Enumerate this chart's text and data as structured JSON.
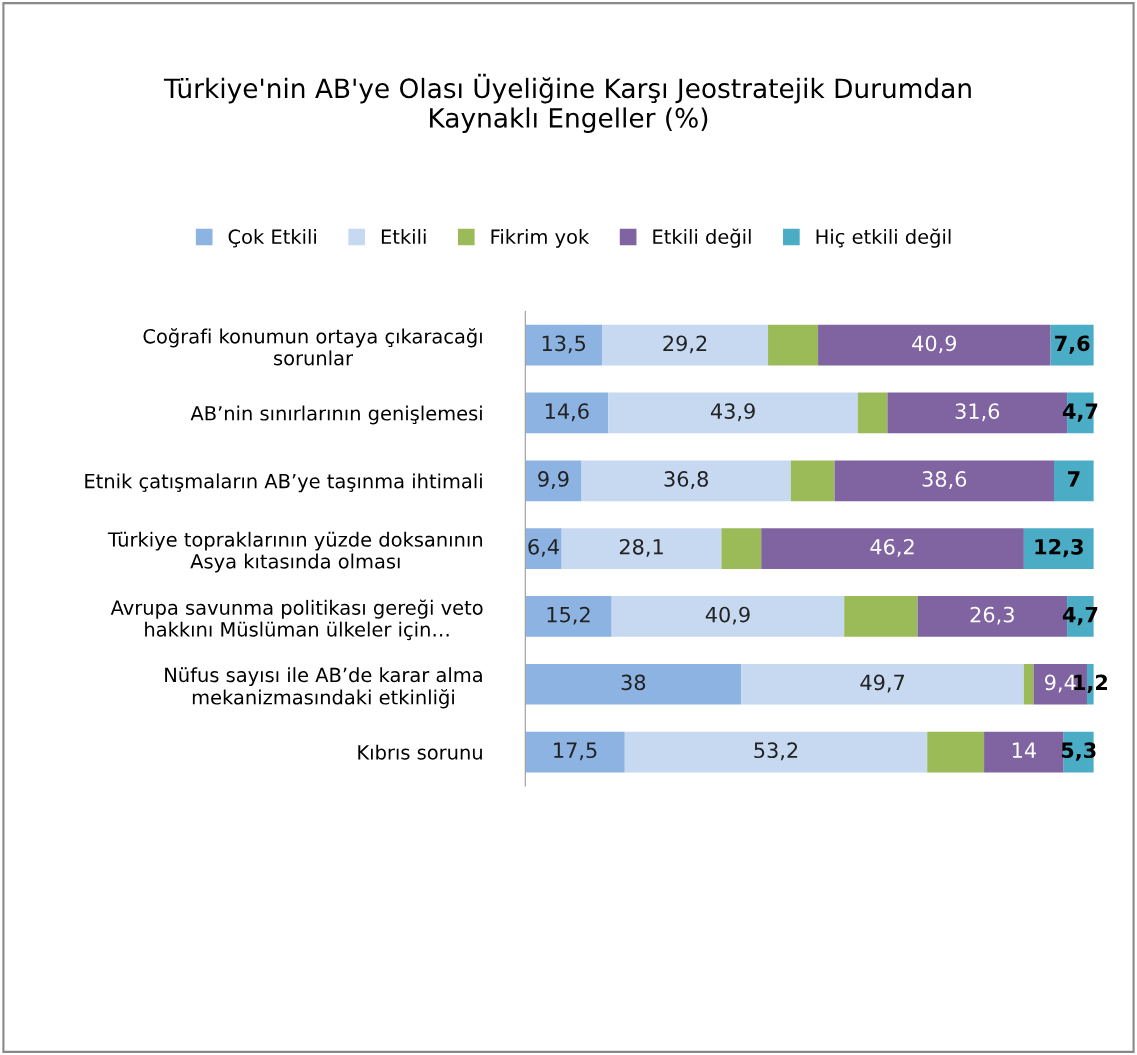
{
  "chart_data": {
    "type": "bar",
    "orientation": "horizontal",
    "stacked": true,
    "title": "Türkiye'nin AB'ye Olası Üyeliğine Karşı Jeostratejik Durumdan\nKaynaklı Engeller (%)",
    "categories": [
      "Coğrafi konumun ortaya çıkaracağı\nsorunlar",
      "AB’nin sınırlarının genişlemesi",
      "Etnik çatışmaların AB’ye taşınma ihtimali",
      "Türkiye topraklarının yüzde doksanının\nAsya kıtasında olması",
      "Avrupa savunma politikası gereği veto\nhakkını Müslüman ülkeler için…",
      "Nüfus sayısı ile AB’de karar alma\nmekanizmasındaki etkinliği",
      "Kıbrıs sorunu"
    ],
    "series": [
      {
        "name": "Çok Etkili",
        "color": "#8db3e2",
        "values": [
          13.5,
          14.6,
          9.9,
          6.4,
          15.2,
          38,
          17.5
        ],
        "value_labels": [
          "13,5",
          "14,6",
          "9,9",
          "6,4",
          "15,2",
          "38",
          "17,5"
        ]
      },
      {
        "name": "Etkili",
        "color": "#c6d9f1",
        "values": [
          29.2,
          43.9,
          36.8,
          28.1,
          40.9,
          49.7,
          53.2
        ],
        "value_labels": [
          "29,2",
          "43,9",
          "36,8",
          "28,1",
          "40,9",
          "49,7",
          "53,2"
        ]
      },
      {
        "name": "Fikrim yok",
        "color": "#9bbb59",
        "values": [
          8.8,
          5.2,
          7.7,
          7,
          12.9,
          1.7,
          10
        ],
        "value_labels": [
          null,
          null,
          null,
          null,
          null,
          null,
          null
        ]
      },
      {
        "name": "Etkili değil",
        "color": "#8064a2",
        "values": [
          40.9,
          31.6,
          38.6,
          46.2,
          26.3,
          9.4,
          14
        ],
        "value_labels": [
          "40,9",
          "31,6",
          "38,6",
          "46,2",
          "26,3",
          "9,4",
          "14"
        ]
      },
      {
        "name": "Hiç etkili değil",
        "color": "#4bacc6",
        "values": [
          7.6,
          4.7,
          7,
          12.3,
          4.7,
          1.2,
          5.3
        ],
        "value_labels": [
          "7,6",
          "4,7",
          "7",
          "12,3",
          "4,7",
          "1,2",
          "5,3"
        ]
      }
    ],
    "legend": "top",
    "grid": false,
    "tick_labels": "y"
  }
}
